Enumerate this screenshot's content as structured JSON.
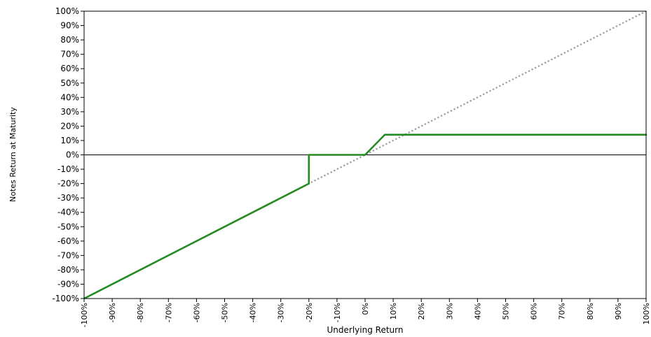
{
  "chart_data": {
    "type": "line",
    "xlabel": "Underlying Return",
    "ylabel": "Notes Return at Maturity",
    "xlim": [
      -100,
      100
    ],
    "ylim": [
      -100,
      100
    ],
    "x_ticks": [
      -100,
      -90,
      -80,
      -70,
      -60,
      -50,
      -40,
      -30,
      -20,
      -10,
      0,
      10,
      20,
      30,
      40,
      50,
      60,
      70,
      80,
      90,
      100
    ],
    "y_ticks": [
      -100,
      -90,
      -80,
      -70,
      -60,
      -50,
      -40,
      -30,
      -20,
      -10,
      0,
      10,
      20,
      30,
      40,
      50,
      60,
      70,
      80,
      90,
      100
    ],
    "x_tick_labels": [
      "-100%",
      "-90%",
      "-80%",
      "-70%",
      "-60%",
      "-50%",
      "-40%",
      "-30%",
      "-20%",
      "-10%",
      "0%",
      "10%",
      "20%",
      "30%",
      "40%",
      "50%",
      "60%",
      "70%",
      "80%",
      "90%",
      "100%"
    ],
    "y_tick_labels": [
      "-100%",
      "-90%",
      "-80%",
      "-70%",
      "-60%",
      "-50%",
      "-40%",
      "-30%",
      "-20%",
      "-10%",
      "0%",
      "10%",
      "20%",
      "30%",
      "40%",
      "50%",
      "60%",
      "70%",
      "80%",
      "90%",
      "100%"
    ],
    "grid": false,
    "series": [
      {
        "style": "solid",
        "color": "#228b22",
        "x": [
          -100,
          -20,
          -20,
          0,
          7,
          100
        ],
        "y": [
          -100,
          -20,
          0,
          0,
          14,
          14
        ]
      },
      {
        "style": "dotted",
        "color": "#999999",
        "x": [
          -100,
          100
        ],
        "y": [
          -100,
          100
        ]
      }
    ],
    "reference_lines": [
      {
        "axis": "y",
        "value": 0,
        "color": "#000000"
      }
    ]
  }
}
